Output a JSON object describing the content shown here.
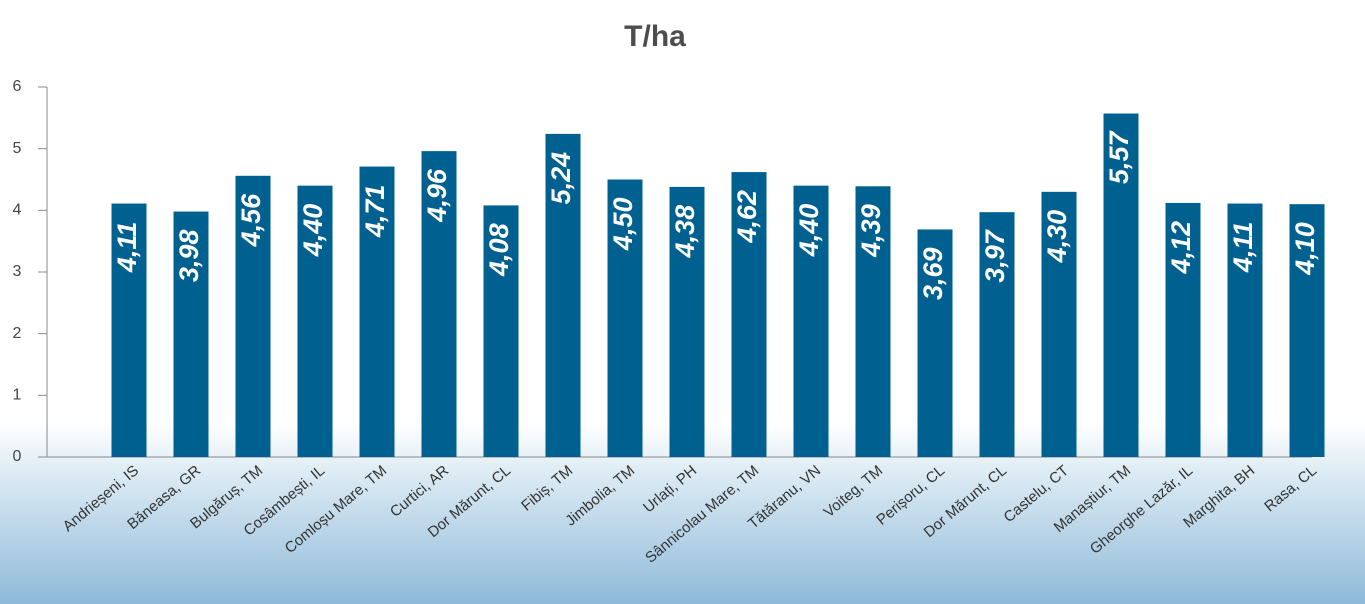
{
  "chart_data": {
    "type": "bar",
    "title": "T/ha",
    "categories": [
      "Andrieșeni, IS",
      "Băneasa, GR",
      "Bulgăruș, TM",
      "Cosâmbești, IL",
      "Comloșu Mare, TM",
      "Curtici, AR",
      "Dor Mărunt, CL",
      "Fibiș, TM",
      "Jimbolia, TM",
      "Urlați, PH",
      "Sânnicolau Mare, TM",
      "Tătăranu, VN",
      "Voiteg, TM",
      "Perișoru, CL",
      "Dor Mărunt, CL",
      "Castelu, CT",
      "Manaștiur, TM",
      "Gheorghe Lazăr, IL",
      "Marghita, BH",
      "Rasa, CL"
    ],
    "values": [
      4.11,
      3.98,
      4.56,
      4.4,
      4.71,
      4.96,
      4.08,
      5.24,
      4.5,
      4.38,
      4.62,
      4.4,
      4.39,
      3.69,
      3.97,
      4.3,
      5.57,
      4.12,
      4.11,
      4.1
    ],
    "value_labels": [
      "4,11",
      "3,98",
      "4,56",
      "4,40",
      "4,71",
      "4,96",
      "4,08",
      "5,24",
      "4,50",
      "4,38",
      "4,62",
      "4,40",
      "4,39",
      "3,69",
      "3,97",
      "4,30",
      "5,57",
      "4,12",
      "4,11",
      "4,10"
    ],
    "color": "#00608f",
    "ylim": [
      0,
      6
    ],
    "yticks": [
      0,
      1,
      2,
      3,
      4,
      5,
      6
    ]
  }
}
